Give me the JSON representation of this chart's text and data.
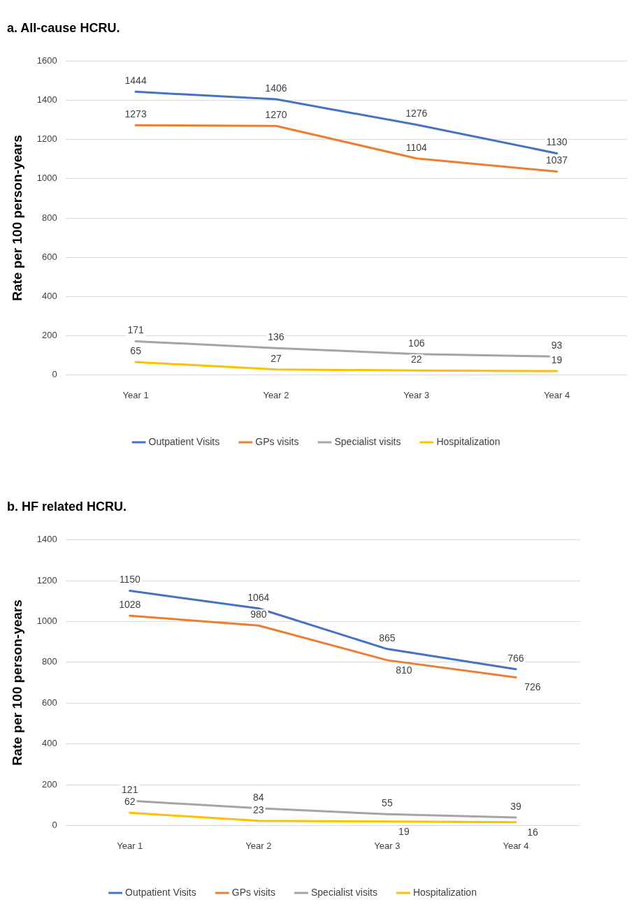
{
  "chart_data": [
    {
      "type": "line",
      "title": "a. All-cause HCRU.",
      "ylabel": "Rate per 100 person-years",
      "categories": [
        "Year 1",
        "Year 2",
        "Year 3",
        "Year 4"
      ],
      "series": [
        {
          "name": "Outpatient Visits",
          "color": "#4472c4",
          "values": [
            1444,
            1406,
            1276,
            1130
          ]
        },
        {
          "name": "GPs visits",
          "color": "#ed7d31",
          "values": [
            1273,
            1270,
            1104,
            1037
          ]
        },
        {
          "name": "Specialist visits",
          "color": "#a5a5a5",
          "values": [
            171,
            136,
            106,
            93
          ]
        },
        {
          "name": "Hospitalization",
          "color": "#ffc000",
          "values": [
            65,
            27,
            22,
            19
          ]
        }
      ],
      "ylim": [
        0,
        1600
      ],
      "yticks": [
        0,
        200,
        400,
        600,
        800,
        1000,
        1200,
        1400,
        1600
      ],
      "grid": "y",
      "legend": "bottom",
      "marker": "none",
      "line_style": "solid",
      "data_labels": true
    },
    {
      "type": "line",
      "title": "b. HF related HCRU.",
      "ylabel": "Rate per 100 person-years",
      "categories": [
        "Year 1",
        "Year 2",
        "Year 3",
        "Year 4"
      ],
      "series": [
        {
          "name": "Outpatient Visits",
          "color": "#4472c4",
          "values": [
            1150,
            1064,
            865,
            766
          ]
        },
        {
          "name": "GPs visits",
          "color": "#ed7d31",
          "values": [
            1028,
            980,
            810,
            726
          ]
        },
        {
          "name": "Specialist visits",
          "color": "#a5a5a5",
          "values": [
            121,
            84,
            55,
            39
          ]
        },
        {
          "name": "Hospitalization",
          "color": "#ffc000",
          "values": [
            62,
            23,
            19,
            16
          ]
        }
      ],
      "ylim": [
        0,
        1400
      ],
      "yticks": [
        0,
        200,
        400,
        600,
        800,
        1000,
        1200,
        1400
      ],
      "grid": "y",
      "legend": "bottom",
      "marker": "none",
      "line_style": "solid",
      "data_labels": true
    }
  ]
}
